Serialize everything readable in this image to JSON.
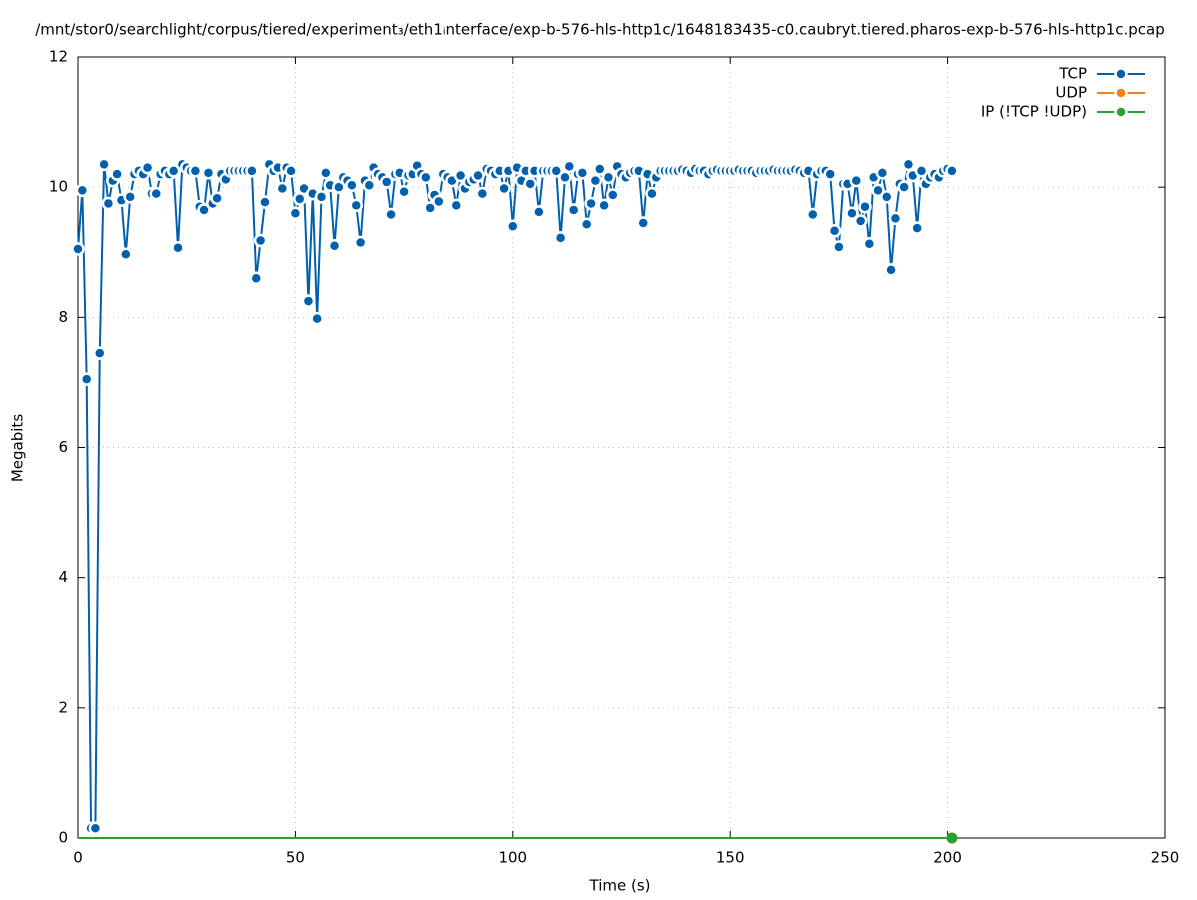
{
  "chart_data": {
    "type": "line",
    "title": "/mnt/stor0/searchlight/corpus/tiered/experiment₃/eth1ᵢnterface/exp-b-576-hls-http1c/1648183435-c0.caubryt.tiered.pharos-exp-b-576-hls-http1c.pcap",
    "xlabel": "Time (s)",
    "ylabel": "Megabits",
    "xlim": [
      0,
      250
    ],
    "ylim": [
      0,
      12
    ],
    "xticks": [
      0,
      50,
      100,
      150,
      200,
      250
    ],
    "yticks": [
      0,
      2,
      4,
      6,
      8,
      10,
      12
    ],
    "grid": true,
    "legend": "top-right",
    "x": [
      0,
      1,
      2,
      3,
      4,
      5,
      6,
      7,
      8,
      9,
      10,
      11,
      12,
      13,
      14,
      15,
      16,
      17,
      18,
      19,
      20,
      21,
      22,
      23,
      24,
      25,
      26,
      27,
      28,
      29,
      30,
      31,
      32,
      33,
      34,
      35,
      36,
      37,
      38,
      39,
      40,
      41,
      42,
      43,
      44,
      45,
      46,
      47,
      48,
      49,
      50,
      51,
      52,
      53,
      54,
      55,
      56,
      57,
      58,
      59,
      60,
      61,
      62,
      63,
      64,
      65,
      66,
      67,
      68,
      69,
      70,
      71,
      72,
      73,
      74,
      75,
      76,
      77,
      78,
      79,
      80,
      81,
      82,
      83,
      84,
      85,
      86,
      87,
      88,
      89,
      90,
      91,
      92,
      93,
      94,
      95,
      96,
      97,
      98,
      99,
      100,
      101,
      102,
      103,
      104,
      105,
      106,
      107,
      108,
      109,
      110,
      111,
      112,
      113,
      114,
      115,
      116,
      117,
      118,
      119,
      120,
      121,
      122,
      123,
      124,
      125,
      126,
      127,
      128,
      129,
      130,
      131,
      132,
      133,
      134,
      135,
      136,
      137,
      138,
      139,
      140,
      141,
      142,
      143,
      144,
      145,
      146,
      147,
      148,
      149,
      150,
      151,
      152,
      153,
      154,
      155,
      156,
      157,
      158,
      159,
      160,
      161,
      162,
      163,
      164,
      165,
      166,
      167,
      168,
      169,
      170,
      171,
      172,
      173,
      174,
      175,
      176,
      177,
      178,
      179,
      180,
      181,
      182,
      183,
      184,
      185,
      186,
      187,
      188,
      189,
      190,
      191,
      192,
      193,
      194,
      195,
      196,
      197,
      198,
      199,
      200,
      201
    ],
    "series": [
      {
        "name": "TCP",
        "color": "#0060ad",
        "values": [
          9.05,
          9.95,
          7.05,
          0.15,
          0.15,
          7.45,
          10.35,
          9.75,
          10.1,
          10.2,
          9.8,
          8.97,
          9.85,
          10.2,
          10.25,
          10.2,
          10.3,
          9.9,
          9.9,
          10.2,
          10.25,
          10.2,
          10.25,
          9.07,
          10.35,
          10.3,
          10.25,
          10.25,
          9.7,
          9.65,
          10.22,
          9.75,
          9.83,
          10.2,
          10.12,
          10.25,
          10.25,
          10.25,
          10.25,
          10.25,
          10.25,
          8.6,
          9.18,
          9.77,
          10.35,
          10.25,
          10.3,
          9.98,
          10.3,
          10.25,
          9.6,
          9.82,
          9.98,
          8.25,
          9.9,
          7.98,
          9.85,
          10.22,
          10.03,
          9.1,
          10,
          10.15,
          10.1,
          10.03,
          9.72,
          9.15,
          10.1,
          10.03,
          10.3,
          10.2,
          10.15,
          10.08,
          9.58,
          10.2,
          10.22,
          9.93,
          10.18,
          10.2,
          10.33,
          10.2,
          10.15,
          9.68,
          9.88,
          9.78,
          10.2,
          10.15,
          10.1,
          9.72,
          10.18,
          9.98,
          10.08,
          10.12,
          10.18,
          9.9,
          10.28,
          10.25,
          10.2,
          10.25,
          9.98,
          10.25,
          9.4,
          10.3,
          10.1,
          10.25,
          10.05,
          10.25,
          9.62,
          10.25,
          10.25,
          10.25,
          10.25,
          9.22,
          10.15,
          10.32,
          9.65,
          10.2,
          10.22,
          9.43,
          9.75,
          10.1,
          10.28,
          9.72,
          10.15,
          9.88,
          10.32,
          10.2,
          10.15,
          10.22,
          10.25,
          10.25,
          9.45,
          10.2,
          9.9,
          10.15,
          10.25,
          10.25,
          10.25,
          10.25,
          10.25,
          10.27,
          10.25,
          10.22,
          10.28,
          10.25,
          10.25,
          10.2,
          10.25,
          10.27,
          10.25,
          10.25,
          10.25,
          10.25,
          10.27,
          10.25,
          10.25,
          10.25,
          10.22,
          10.25,
          10.25,
          10.25,
          10.27,
          10.25,
          10.25,
          10.25,
          10.25,
          10.27,
          10.25,
          10.22,
          10.25,
          9.58,
          10.2,
          10.25,
          10.25,
          10.2,
          9.33,
          9.08,
          10.05,
          10.05,
          9.6,
          10.1,
          9.48,
          9.7,
          9.13,
          10.15,
          9.95,
          10.22,
          9.85,
          8.73,
          9.52,
          10.05,
          10,
          10.35,
          10.18,
          9.37,
          10.25,
          10.05,
          10.15,
          10.2,
          10.15,
          10.25,
          10.28,
          10.25
        ]
      },
      {
        "name": "UDP",
        "color": "#ff7f0e",
        "x": [],
        "values": []
      },
      {
        "name": "IP (!TCP  !UDP)",
        "color": "#2ca02c",
        "values": [
          0,
          0,
          0,
          0,
          0,
          0,
          0,
          0,
          0,
          0,
          0,
          0,
          0,
          0,
          0,
          0,
          0,
          0,
          0,
          0,
          0,
          0,
          0,
          0,
          0,
          0,
          0,
          0,
          0,
          0,
          0,
          0,
          0,
          0,
          0,
          0,
          0,
          0,
          0,
          0,
          0,
          0,
          0,
          0,
          0,
          0,
          0,
          0,
          0,
          0,
          0,
          0,
          0,
          0,
          0,
          0,
          0,
          0,
          0,
          0,
          0,
          0,
          0,
          0,
          0,
          0,
          0,
          0,
          0,
          0,
          0,
          0,
          0,
          0,
          0,
          0,
          0,
          0,
          0,
          0,
          0,
          0,
          0,
          0,
          0,
          0,
          0,
          0,
          0,
          0,
          0,
          0,
          0,
          0,
          0,
          0,
          0,
          0,
          0,
          0,
          0,
          0,
          0,
          0,
          0,
          0,
          0,
          0,
          0,
          0,
          0,
          0,
          0,
          0,
          0,
          0,
          0,
          0,
          0,
          0,
          0,
          0,
          0,
          0,
          0,
          0,
          0,
          0,
          0,
          0,
          0,
          0,
          0,
          0,
          0,
          0,
          0,
          0,
          0,
          0,
          0,
          0,
          0,
          0,
          0,
          0,
          0,
          0,
          0,
          0,
          0,
          0,
          0,
          0,
          0,
          0,
          0,
          0,
          0,
          0,
          0,
          0,
          0,
          0,
          0,
          0,
          0,
          0,
          0,
          0,
          0,
          0,
          0,
          0,
          0,
          0,
          0,
          0,
          0,
          0,
          0,
          0,
          0,
          0,
          0,
          0,
          0,
          0,
          0,
          0,
          0,
          0,
          0,
          0,
          0,
          0,
          0,
          0,
          0,
          0,
          0,
          0
        ]
      }
    ]
  }
}
